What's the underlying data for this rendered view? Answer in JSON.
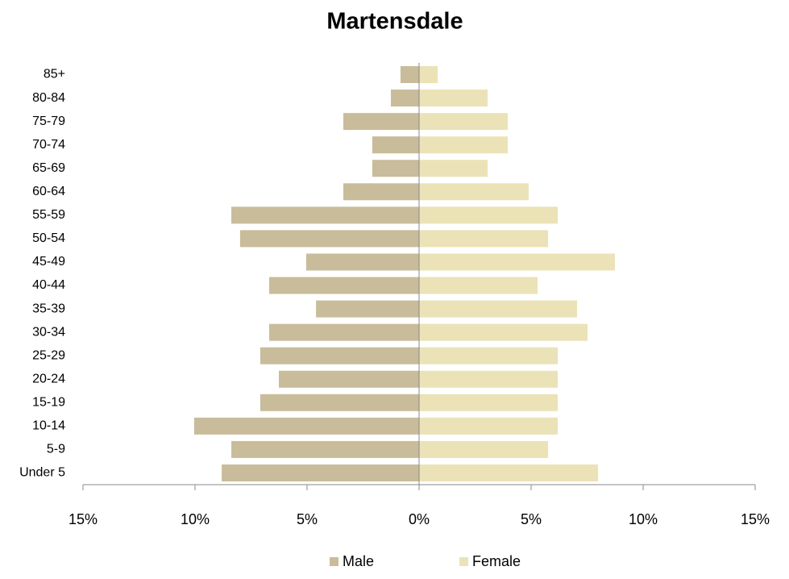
{
  "chart_data": {
    "type": "pyramid",
    "title": "Martensdale",
    "categories": [
      "Under 5",
      "5-9",
      "10-14",
      "15-19",
      "20-24",
      "25-29",
      "30-34",
      "35-39",
      "40-44",
      "45-49",
      "50-54",
      "55-59",
      "60-64",
      "65-69",
      "70-74",
      "75-79",
      "80-84",
      "85+"
    ],
    "series": [
      {
        "name": "Male",
        "color": "#c8bc9a",
        "values": [
          -8.81,
          -8.38,
          -10.04,
          -7.09,
          -6.26,
          -7.09,
          -6.69,
          -4.6,
          -6.69,
          -5.04,
          -7.99,
          -8.38,
          -3.38,
          -2.09,
          -2.09,
          -3.38,
          -1.26,
          -0.83
        ]
      },
      {
        "name": "Female",
        "color": "#ebe2b7",
        "values": [
          7.99,
          5.76,
          6.19,
          6.19,
          6.19,
          6.19,
          7.52,
          7.05,
          5.29,
          8.74,
          5.76,
          6.19,
          4.89,
          3.06,
          3.96,
          3.96,
          3.06,
          0.83
        ]
      }
    ],
    "xlim": [
      -15,
      15
    ],
    "xticks": [
      {
        "value": -15,
        "label": "15%"
      },
      {
        "value": -10,
        "label": "10%"
      },
      {
        "value": -5,
        "label": "5%"
      },
      {
        "value": 0,
        "label": "0%"
      },
      {
        "value": 5,
        "label": "5%"
      },
      {
        "value": 10,
        "label": "10%"
      },
      {
        "value": 15,
        "label": "15%"
      }
    ]
  }
}
